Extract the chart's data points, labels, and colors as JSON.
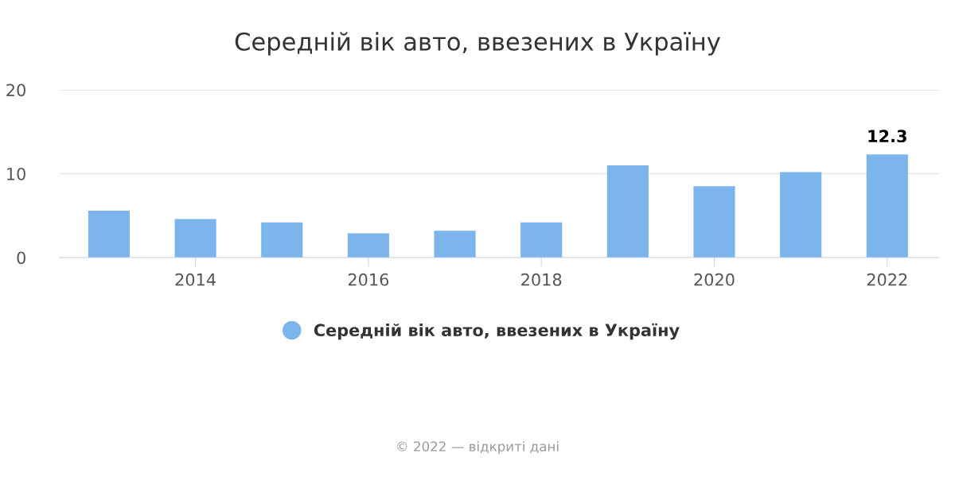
{
  "chart_data": {
    "type": "bar",
    "title": "Середній вік авто, ввезених в Україну",
    "x": [
      2013,
      2014,
      2015,
      2016,
      2017,
      2018,
      2019,
      2020,
      2021,
      2022
    ],
    "series": [
      {
        "name": "Середній вік авто, ввезених в Україну",
        "color": "#7cb5ec",
        "values": [
          5.6,
          4.6,
          4.2,
          2.9,
          3.2,
          4.2,
          11.0,
          8.5,
          10.2,
          12.3
        ],
        "value_labels": [
          null,
          null,
          null,
          null,
          null,
          null,
          null,
          null,
          null,
          "12.3"
        ]
      }
    ],
    "xlim": [
      2012.43,
      2022.6
    ],
    "xticks": [
      2014,
      2016,
      2018,
      2020,
      2022
    ],
    "ylim": [
      0,
      20
    ],
    "yticks": [
      0,
      10,
      20
    ],
    "grid": "y",
    "legend": "bottom",
    "annotations": [
      "© 2022 — відкриті дані"
    ]
  }
}
